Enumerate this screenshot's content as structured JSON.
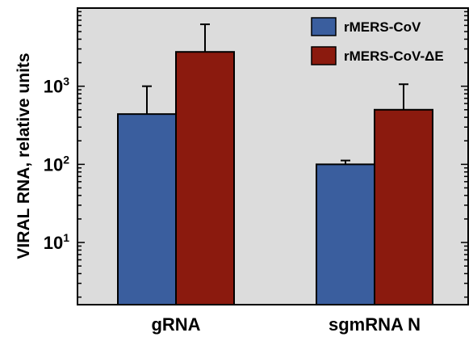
{
  "chart_data": {
    "type": "bar",
    "ylabel": "VIRAL RNA, relative units",
    "yscale": "log",
    "ylim": [
      1.6,
      10000
    ],
    "yticks": [
      {
        "value": 10,
        "base": "10",
        "exp": "1"
      },
      {
        "value": 100,
        "base": "10",
        "exp": "2"
      },
      {
        "value": 1000,
        "base": "10",
        "exp": "3"
      }
    ],
    "categories": [
      "gRNA",
      "sgmRNA N"
    ],
    "series": [
      {
        "name": "rMERS-CoV",
        "color": "#3A5E9E",
        "values": [
          440,
          100
        ],
        "errors": [
          1000,
          112
        ]
      },
      {
        "name": "rMERS-CoV-ΔE",
        "color": "#8B1A0E",
        "values": [
          2750,
          500
        ],
        "errors": [
          6200,
          1060
        ]
      }
    ],
    "grid": false,
    "legend_position": "top-right",
    "plot_background": "#DCDCDC"
  }
}
